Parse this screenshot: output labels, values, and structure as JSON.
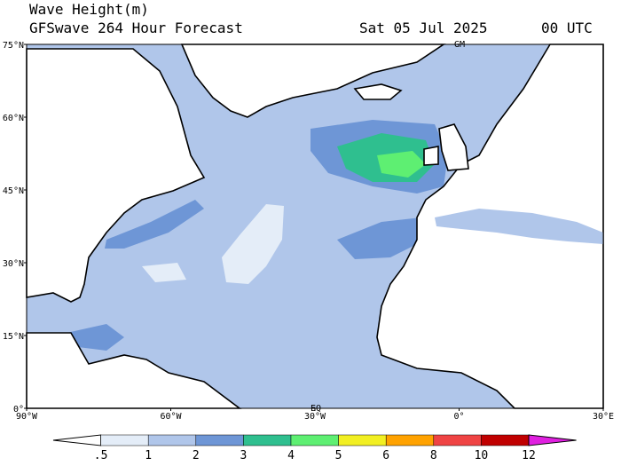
{
  "header": {
    "title": "Wave Height(m)",
    "subtitle": "GFSwave 264 Hour Forecast",
    "date": "Sat 05 Jul 2025",
    "time": "00 UTC"
  },
  "map": {
    "lat_labels": [
      "75°N",
      "60°N",
      "45°N",
      "30°N",
      "15°N",
      "0°"
    ],
    "lon_labels": [
      "90°W",
      "60°W",
      "30°W",
      "0°",
      "30°E"
    ],
    "meridian_label": "GM",
    "equator_label": "EQ"
  },
  "colorbar": {
    "labels": [
      ".5",
      "1",
      "2",
      "3",
      "4",
      "5",
      "6",
      "8",
      "10",
      "12"
    ],
    "colors": [
      "#ffffff",
      "#e4edf8",
      "#b0c6ea",
      "#6e96d6",
      "#2fbf8f",
      "#5eef72",
      "#f2ef22",
      "#ffa200",
      "#ef4444",
      "#c00000",
      "#e020e0"
    ]
  }
}
